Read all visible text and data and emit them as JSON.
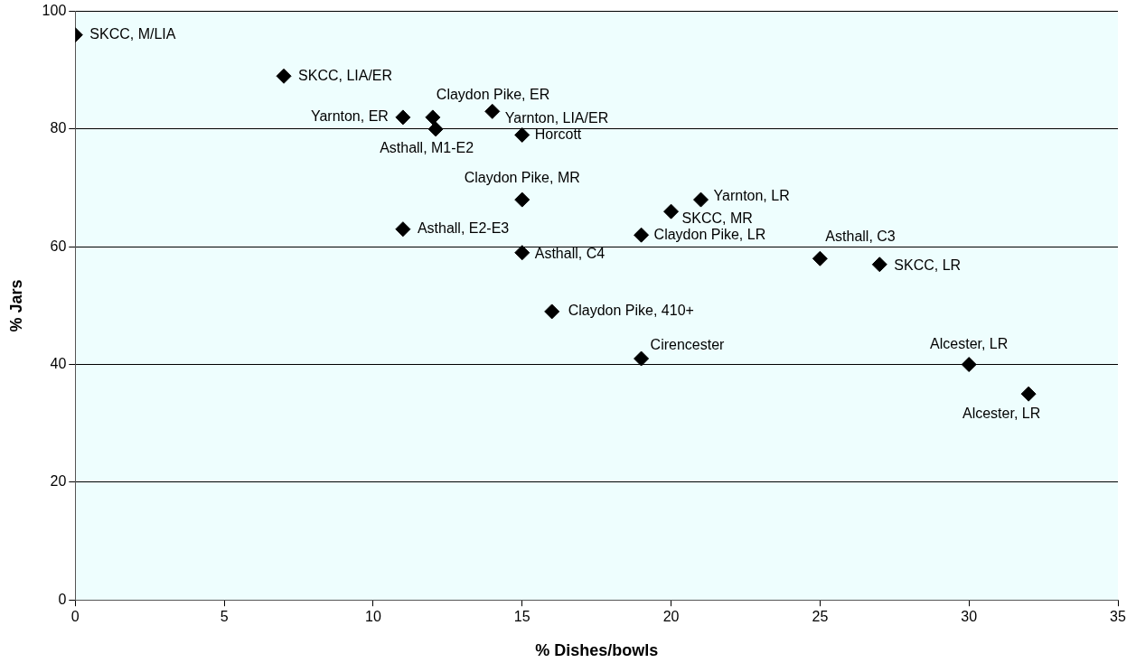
{
  "chart_data": {
    "type": "scatter",
    "xlabel": "% Dishes/bowls",
    "ylabel": "% Jars",
    "x": [
      0,
      7,
      11,
      12,
      12.1,
      14,
      15,
      15,
      11,
      15,
      21,
      20,
      19,
      25,
      27,
      16,
      19,
      30,
      32
    ],
    "values": [
      96,
      89,
      82,
      82,
      80,
      83,
      79,
      68,
      63,
      59,
      68,
      66,
      62,
      58,
      57,
      49,
      41,
      40,
      35
    ],
    "color": "#000000",
    "marker": "diamond",
    "grid": "y",
    "legend": false,
    "xlim": [
      0,
      35
    ],
    "xticks": [
      0,
      5,
      10,
      15,
      20,
      25,
      30,
      35
    ],
    "ylim": [
      0,
      100
    ],
    "yticks": [
      0,
      20,
      40,
      60,
      80,
      100
    ],
    "annotations": [
      {
        "text": "SKCC, M/LIA",
        "x": 0,
        "y": 96
      },
      {
        "text": "SKCC, LIA/ER",
        "x": 7,
        "y": 89
      },
      {
        "text": "Yarnton, ER",
        "x": 11,
        "y": 82
      },
      {
        "text": "Claydon Pike, ER",
        "x": 12,
        "y": 82
      },
      {
        "text": "Asthall, M1-E2",
        "x": 12.1,
        "y": 80
      },
      {
        "text": "Yarnton, LIA/ER",
        "x": 14,
        "y": 83
      },
      {
        "text": "Horcott",
        "x": 15,
        "y": 79
      },
      {
        "text": "Claydon Pike, MR",
        "x": 15,
        "y": 68
      },
      {
        "text": "Asthall, E2-E3",
        "x": 11,
        "y": 63
      },
      {
        "text": "Asthall, C4",
        "x": 15,
        "y": 59
      },
      {
        "text": "Yarnton, LR",
        "x": 21,
        "y": 68
      },
      {
        "text": "SKCC, MR",
        "x": 20,
        "y": 66
      },
      {
        "text": "Claydon Pike, LR",
        "x": 19,
        "y": 62
      },
      {
        "text": "Asthall, C3",
        "x": 25,
        "y": 58
      },
      {
        "text": "SKCC, LR",
        "x": 27,
        "y": 57
      },
      {
        "text": "Claydon Pike, 410+",
        "x": 16,
        "y": 49
      },
      {
        "text": "Cirencester",
        "x": 19,
        "y": 41
      },
      {
        "text": "Alcester, LR",
        "x": 30,
        "y": 40
      },
      {
        "text": "Alcester, LR",
        "x": 32,
        "y": 35
      }
    ]
  }
}
